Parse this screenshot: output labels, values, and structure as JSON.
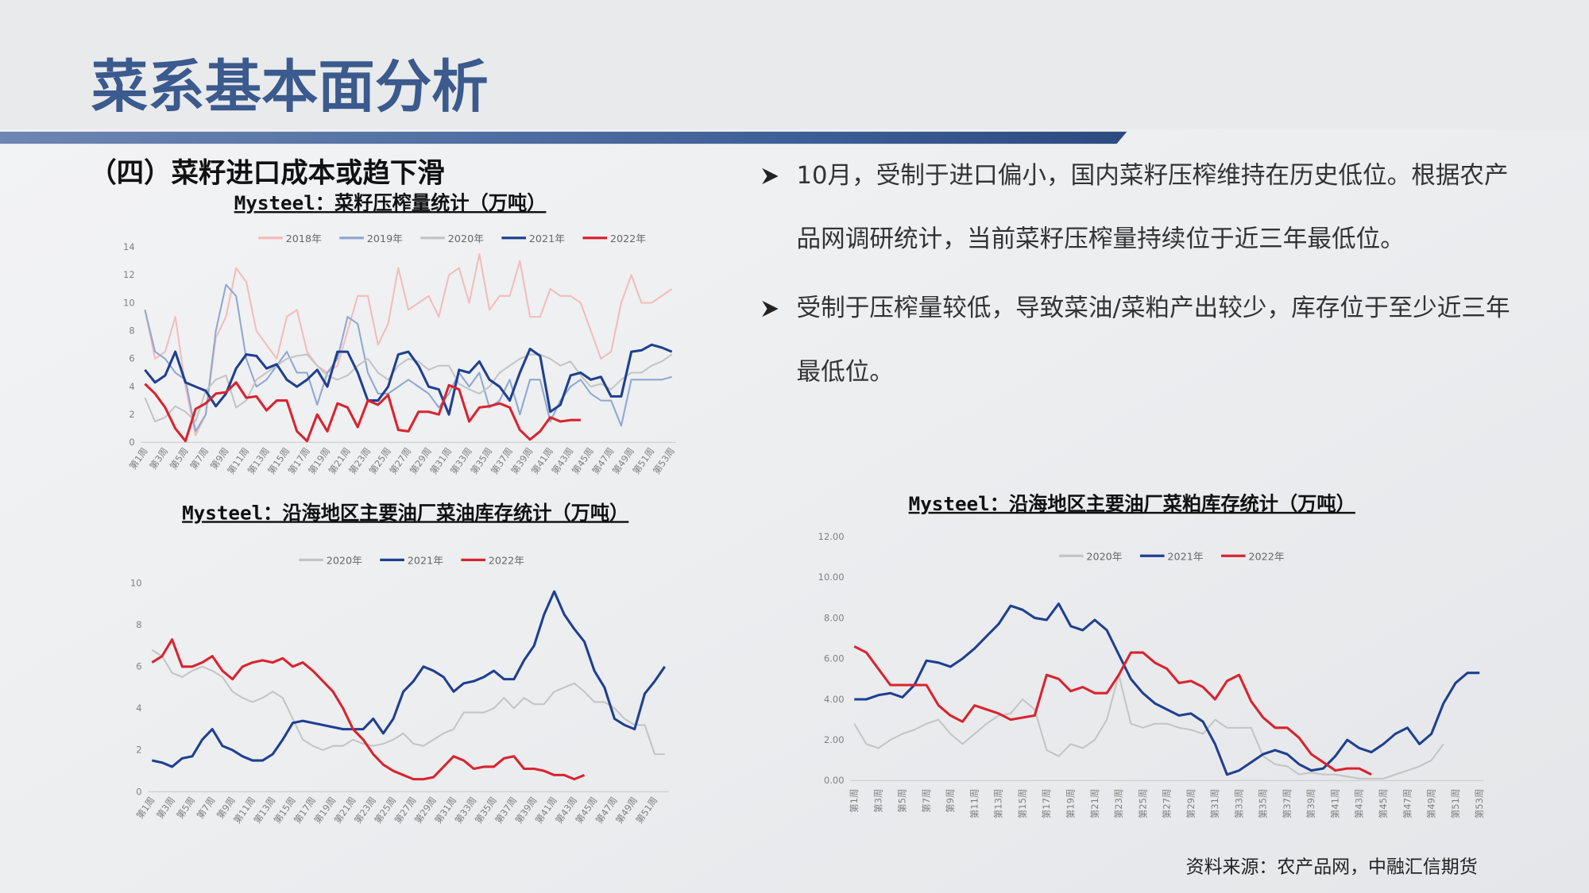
{
  "header": {
    "title": "菜系基本面分析"
  },
  "subtitle": "（四）菜籽进口成本或趋下滑",
  "bullets": [
    "10月，受制于进口偏小，国内菜籽压榨维持在历史低位。根据农产品网调研统计，当前菜籽压榨量持续位于近三年最低位。",
    "受制于压榨量较低，导致菜油/菜粕产出较少，库存位于至少近三年最低位。"
  ],
  "source": "资料来源：农产品网，中融汇信期货",
  "chart_data": [
    {
      "type": "line",
      "title": "Mysteel：菜籽压榨量统计（万吨）",
      "categories": [
        "第1周",
        null,
        "第3周",
        null,
        "第5周",
        null,
        "第7周",
        null,
        "第9周",
        null,
        "第11周",
        null,
        "第13周",
        null,
        "第15周",
        null,
        "第17周",
        null,
        "第19周",
        null,
        "第21周",
        null,
        "第23周",
        null,
        "第25周",
        null,
        "第27周",
        null,
        "第29周",
        null,
        "第31周",
        null,
        "第33周",
        null,
        "第35周",
        null,
        "第37周",
        null,
        "第39周",
        null,
        "第41周",
        null,
        "第43周",
        null,
        "第45周",
        null,
        "第47周",
        null,
        "第49周",
        null,
        "第51周",
        null,
        "第53周"
      ],
      "ylim": [
        0,
        14
      ],
      "yticks": [
        0,
        2,
        4,
        6,
        8,
        10,
        12,
        14
      ],
      "grid": false,
      "legend": "top",
      "series": [
        {
          "name": "2018年",
          "color": "#f2bcbc",
          "values": [
            9.5,
            6,
            6.5,
            9,
            4,
            0.5,
            2,
            7.5,
            9,
            12.5,
            11.5,
            8,
            7,
            6,
            9,
            9.5,
            6.5,
            5.5,
            5,
            5.5,
            8,
            10.5,
            10.5,
            7,
            8.5,
            12.5,
            9.5,
            10,
            10.5,
            9,
            12,
            12.5,
            10,
            13.5,
            9.5,
            10.5,
            10.5,
            13,
            9,
            9,
            11,
            10.5,
            10.5,
            10,
            8,
            6,
            6.5,
            10,
            12,
            10,
            10,
            10.5,
            11
          ]
        },
        {
          "name": "2019年",
          "color": "#8ea7d1",
          "values": [
            9.5,
            6.5,
            6,
            5,
            4.5,
            0.8,
            2,
            8,
            11.3,
            10.5,
            6,
            4,
            4.5,
            5.5,
            6.5,
            5,
            5,
            2.7,
            5,
            6,
            9,
            8.5,
            5,
            3.5,
            3.5,
            4,
            4.5,
            4,
            3.5,
            2.5,
            3.5,
            5,
            4,
            5,
            2.5,
            3,
            4.5,
            2,
            4.5,
            4.5,
            1.5,
            3,
            4,
            4.5,
            3.5,
            3,
            3,
            1.2,
            4.5,
            4.5,
            4.5,
            4.5,
            4.7
          ]
        },
        {
          "name": "2020年",
          "color": "#c4c4c4",
          "values": [
            3.2,
            1.5,
            1.8,
            2.6,
            2.2,
            1.5,
            3.7,
            4.5,
            4.8,
            2.5,
            3.0,
            4.5,
            5.0,
            5.5,
            6.0,
            6.2,
            6.3,
            5.5,
            4.8,
            4.5,
            4.8,
            5.5,
            6.0,
            5.0,
            4.5,
            5.5,
            6.0,
            5.8,
            5.2,
            5.5,
            5.5,
            4.2,
            3.8,
            3.5,
            4.0,
            5.0,
            5.5,
            6.0,
            6.3,
            6.3,
            6.0,
            5.5,
            5.8,
            4.8,
            4.0,
            4.2,
            3.8,
            4.5,
            5.0,
            5.0,
            5.5,
            5.8,
            6.3
          ]
        },
        {
          "name": "2021年",
          "color": "#1f3f8f",
          "values": [
            5.2,
            4.3,
            4.8,
            6.5,
            4.3,
            4.0,
            3.7,
            2.6,
            3.5,
            5.3,
            6.3,
            6.2,
            5.3,
            5.6,
            4.5,
            4.0,
            4.5,
            5.2,
            4.0,
            6.5,
            6.5,
            5.0,
            3.0,
            3.0,
            4.0,
            6.3,
            6.5,
            5.5,
            4.0,
            3.8,
            2.0,
            5.2,
            5.0,
            5.8,
            4.5,
            4.0,
            3.0,
            5.0,
            6.7,
            6.2,
            2.2,
            2.7,
            4.8,
            5.0,
            4.5,
            4.7,
            3.3,
            3.3,
            6.5,
            6.6,
            7.0,
            6.8,
            6.5
          ]
        },
        {
          "name": "2022年",
          "color": "#d9232e",
          "values": [
            4.2,
            3.5,
            2.5,
            1.0,
            0.1,
            2.4,
            2.8,
            3.5,
            3.6,
            4.3,
            3.2,
            3.3,
            2.3,
            3.0,
            3.0,
            0.8,
            0.1,
            2.0,
            0.8,
            2.8,
            2.5,
            1.1,
            3.0,
            2.7,
            3.4,
            0.9,
            0.8,
            2.2,
            2.2,
            2.0,
            4.1,
            3.8,
            1.5,
            2.5,
            2.6,
            2.8,
            2.5,
            0.9,
            0.2,
            0.8,
            1.8,
            1.5,
            1.6,
            1.6,
            null,
            null,
            null,
            null,
            null,
            null,
            null,
            null,
            null
          ]
        }
      ]
    },
    {
      "type": "line",
      "title": "Mysteel：沿海地区主要油厂菜油库存统计（万吨）",
      "categories": [
        "第1周",
        null,
        "第3周",
        null,
        "第5周",
        null,
        "第7周",
        null,
        "第9周",
        null,
        "第11周",
        null,
        "第13周",
        null,
        "第15周",
        null,
        "第17周",
        null,
        "第19周",
        null,
        "第21周",
        null,
        "第23周",
        null,
        "第25周",
        null,
        "第27周",
        null,
        "第29周",
        null,
        "第31周",
        null,
        "第33周",
        null,
        "第35周",
        null,
        "第37周",
        null,
        "第39周",
        null,
        "第41周",
        null,
        "第43周",
        null,
        "第45周",
        null,
        "第47周",
        null,
        "第49周",
        null,
        "第51周",
        null
      ],
      "ylim": [
        0,
        10
      ],
      "yticks": [
        0,
        2,
        4,
        6,
        8,
        10
      ],
      "grid": false,
      "legend": "top",
      "series": [
        {
          "name": "2020年",
          "color": "#c4c4c4",
          "values": [
            6.8,
            6.5,
            5.7,
            5.5,
            5.8,
            6.0,
            5.8,
            5.5,
            4.8,
            4.5,
            4.3,
            4.5,
            4.8,
            4.5,
            3.5,
            2.5,
            2.2,
            2.0,
            2.2,
            2.2,
            2.5,
            2.3,
            2.2,
            2.3,
            2.5,
            2.8,
            2.3,
            2.2,
            2.5,
            2.8,
            3.0,
            3.8,
            3.8,
            3.8,
            4.0,
            4.5,
            4.0,
            4.5,
            4.2,
            4.2,
            4.8,
            5.0,
            5.2,
            4.8,
            4.3,
            4.3,
            4.0,
            3.5,
            3.2,
            3.2,
            1.8,
            1.8
          ]
        },
        {
          "name": "2021年",
          "color": "#1f3f8f",
          "values": [
            1.5,
            1.4,
            1.2,
            1.6,
            1.7,
            2.5,
            3.0,
            2.2,
            2.0,
            1.7,
            1.5,
            1.5,
            1.8,
            2.5,
            3.3,
            3.4,
            3.3,
            3.2,
            3.1,
            3.0,
            3.0,
            3.0,
            3.5,
            2.8,
            3.5,
            4.8,
            5.3,
            6.0,
            5.8,
            5.5,
            4.8,
            5.2,
            5.3,
            5.5,
            5.8,
            5.4,
            5.4,
            6.3,
            7.0,
            8.5,
            9.6,
            8.5,
            7.8,
            7.2,
            5.8,
            5.0,
            3.5,
            3.2,
            3.0,
            4.7,
            5.3,
            6.0
          ]
        },
        {
          "name": "2022年",
          "color": "#d9232e",
          "values": [
            6.2,
            6.5,
            7.3,
            6.0,
            6.0,
            6.2,
            6.5,
            5.8,
            5.4,
            6.0,
            6.2,
            6.3,
            6.2,
            6.4,
            6.0,
            6.2,
            5.8,
            5.3,
            4.8,
            4.0,
            3.0,
            2.5,
            1.8,
            1.3,
            1.0,
            0.8,
            0.6,
            0.6,
            0.7,
            1.2,
            1.7,
            1.5,
            1.1,
            1.2,
            1.2,
            1.6,
            1.7,
            1.1,
            1.1,
            1.0,
            0.8,
            0.8,
            0.6,
            0.8,
            null,
            null,
            null,
            null,
            null,
            null,
            null,
            null
          ]
        }
      ]
    },
    {
      "type": "line",
      "title": "Mysteel：沿海地区主要油厂菜粕库存统计（万吨）",
      "categories": [
        "第1周",
        null,
        "第3周",
        null,
        "第5周",
        null,
        "第7周",
        null,
        "第9周",
        null,
        "第11周",
        null,
        "第13周",
        null,
        "第15周",
        null,
        "第17周",
        null,
        "第19周",
        null,
        "第21周",
        null,
        "第23周",
        null,
        "第25周",
        null,
        "第27周",
        null,
        "第29周",
        null,
        "第31周",
        null,
        "第33周",
        null,
        "第35周",
        null,
        "第37周",
        null,
        "第39周",
        null,
        "第41周",
        null,
        "第43周",
        null,
        "第45周",
        null,
        "第47周",
        null,
        "第49周",
        null,
        "第51周",
        null,
        "第53周"
      ],
      "ylim": [
        0,
        12
      ],
      "yticks": [
        {
          "value": 0,
          "label": "0.00"
        },
        {
          "value": 2,
          "label": "2.00"
        },
        {
          "value": 4,
          "label": "4.00"
        },
        {
          "value": 6,
          "label": "6.00"
        },
        {
          "value": 8,
          "label": "8.00"
        },
        {
          "value": 10,
          "label": "10.00"
        },
        {
          "value": 12,
          "label": "12.00"
        }
      ],
      "grid": false,
      "legend": "top",
      "series": [
        {
          "name": "2020年",
          "color": "#c4c4c4",
          "values": [
            2.8,
            1.8,
            1.6,
            2.0,
            2.3,
            2.5,
            2.8,
            3.0,
            2.3,
            1.8,
            2.3,
            2.8,
            3.2,
            3.3,
            4.0,
            3.5,
            1.5,
            1.2,
            1.8,
            1.6,
            2.0,
            3.0,
            5.2,
            2.8,
            2.6,
            2.8,
            2.8,
            2.6,
            2.5,
            2.3,
            3.0,
            2.6,
            2.6,
            2.6,
            1.2,
            0.8,
            0.7,
            0.3,
            0.4,
            0.3,
            0.3,
            0.2,
            0.1,
            0.1,
            0.1,
            0.3,
            0.5,
            0.7,
            1.0,
            1.8,
            null,
            null,
            null
          ]
        },
        {
          "name": "2021年",
          "color": "#1f3f8f",
          "values": [
            4.0,
            4.0,
            4.2,
            4.3,
            4.1,
            4.7,
            5.9,
            5.8,
            5.6,
            6.0,
            6.5,
            7.1,
            7.7,
            8.6,
            8.4,
            8.0,
            7.9,
            8.7,
            7.6,
            7.4,
            7.9,
            7.4,
            6.2,
            5.0,
            4.3,
            3.8,
            3.5,
            3.2,
            3.3,
            2.9,
            1.8,
            0.3,
            0.5,
            0.9,
            1.3,
            1.5,
            1.3,
            0.8,
            0.5,
            0.6,
            1.2,
            2.0,
            1.6,
            1.4,
            1.8,
            2.3,
            2.6,
            1.8,
            2.3,
            3.8,
            4.8,
            5.3,
            5.3
          ]
        },
        {
          "name": "2022年",
          "color": "#d9232e",
          "values": [
            6.6,
            6.3,
            5.5,
            4.7,
            4.7,
            4.7,
            4.7,
            3.7,
            3.2,
            2.9,
            3.7,
            3.5,
            3.3,
            3.0,
            3.1,
            3.2,
            5.2,
            5.0,
            4.4,
            4.6,
            4.3,
            4.3,
            5.2,
            6.3,
            6.3,
            5.8,
            5.5,
            4.8,
            4.9,
            4.6,
            4.0,
            4.9,
            5.2,
            3.9,
            3.1,
            2.6,
            2.6,
            2.1,
            1.3,
            0.9,
            0.5,
            0.6,
            0.6,
            0.3,
            null,
            null,
            null,
            null,
            null,
            null,
            null,
            null,
            null
          ]
        }
      ]
    }
  ]
}
